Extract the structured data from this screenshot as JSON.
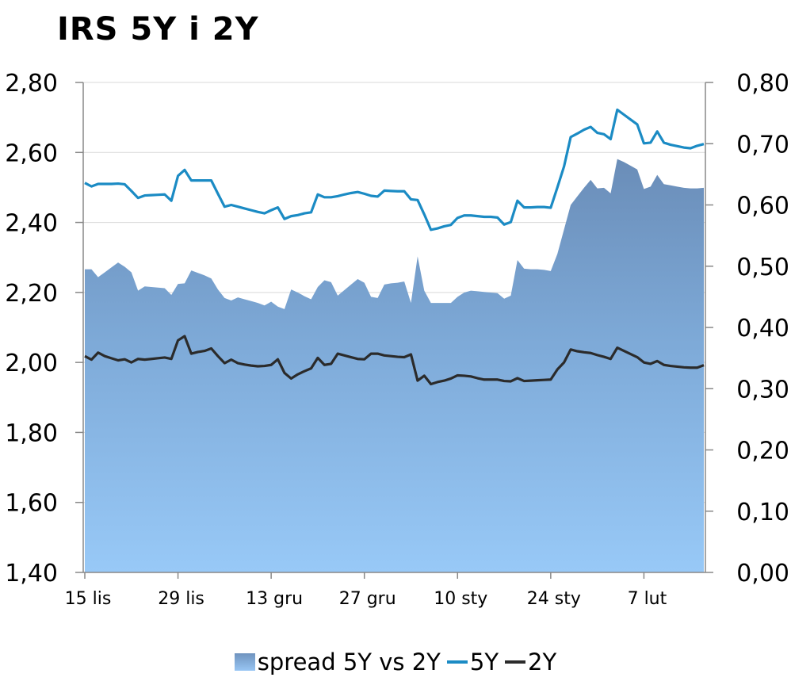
{
  "chart_data": {
    "type": "area",
    "title": "IRS 5Y i 2Y",
    "x_ticks": [
      "15 lis",
      "29 lis",
      "13 gru",
      "27 gru",
      "10 sty",
      "24 sty",
      "7 lut"
    ],
    "y_left": {
      "ylim": [
        1.4,
        2.8
      ],
      "ticks": [
        "1,40",
        "1,60",
        "1,80",
        "2,00",
        "2,20",
        "2,40",
        "2,60",
        "2,80"
      ]
    },
    "y_right": {
      "ylim": [
        0.0,
        0.8
      ],
      "ticks": [
        "0,00",
        "0,10",
        "0,20",
        "0,30",
        "0,40",
        "0,50",
        "0,60",
        "0,70",
        "0,80"
      ]
    },
    "grid": true,
    "legend_position": "bottom",
    "x": [
      0,
      1,
      2,
      3,
      4,
      5,
      6,
      7,
      8,
      9,
      10,
      11,
      12,
      13,
      14,
      15,
      16,
      17,
      18,
      19,
      20,
      21,
      22,
      23,
      24,
      25,
      26,
      27,
      28,
      29,
      30,
      31,
      32,
      33,
      34,
      35,
      36,
      37,
      38,
      39,
      40,
      41,
      42,
      43,
      44,
      45,
      46,
      47,
      48,
      49,
      50,
      51,
      52,
      53,
      54,
      55,
      56,
      57,
      58,
      59,
      60,
      61,
      62,
      63,
      64,
      65,
      66,
      67,
      68,
      69,
      70,
      71,
      72,
      73,
      74,
      75,
      76,
      77,
      78,
      79,
      80,
      81,
      82,
      83,
      84,
      85,
      86,
      87,
      88,
      89,
      90,
      91,
      92,
      93
    ],
    "x_tick_index": [
      0,
      14,
      28,
      42,
      56,
      70,
      84
    ],
    "series": [
      {
        "name": "spread 5Y vs 2Y",
        "axis": "right",
        "type": "area",
        "values": [
          0.495,
          0.495,
          0.482,
          0.49,
          0.498,
          0.506,
          0.499,
          0.49,
          0.46,
          0.467,
          0.466,
          0.465,
          0.464,
          0.453,
          0.471,
          0.472,
          0.493,
          0.489,
          0.485,
          0.48,
          0.462,
          0.448,
          0.444,
          0.449,
          0.446,
          0.443,
          0.44,
          0.436,
          0.442,
          0.434,
          0.43,
          0.462,
          0.457,
          0.451,
          0.446,
          0.466,
          0.477,
          0.474,
          0.452,
          0.461,
          0.47,
          0.479,
          0.473,
          0.45,
          0.448,
          0.47,
          0.472,
          0.473,
          0.475,
          0.44,
          0.516,
          0.46,
          0.44,
          0.44,
          0.44,
          0.44,
          0.45,
          0.457,
          0.46,
          0.459,
          0.458,
          0.457,
          0.456,
          0.447,
          0.452,
          0.51,
          0.496,
          0.495,
          0.495,
          0.494,
          0.492,
          0.52,
          0.56,
          0.6,
          0.614,
          0.628,
          0.641,
          0.627,
          0.628,
          0.619,
          0.675,
          0.67,
          0.664,
          0.658,
          0.626,
          0.63,
          0.649,
          0.634,
          0.632,
          0.63,
          0.628,
          0.627,
          0.627,
          0.628
        ]
      },
      {
        "name": "5Y",
        "axis": "left",
        "type": "line",
        "color": "#1b8bc4",
        "values": [
          2.513,
          2.503,
          2.51,
          2.51,
          2.51,
          2.511,
          2.509,
          2.49,
          2.47,
          2.477,
          2.478,
          2.479,
          2.48,
          2.462,
          2.533,
          2.55,
          2.52,
          2.52,
          2.52,
          2.52,
          2.482,
          2.445,
          2.45,
          2.445,
          2.44,
          2.435,
          2.43,
          2.426,
          2.435,
          2.443,
          2.41,
          2.418,
          2.421,
          2.426,
          2.429,
          2.48,
          2.472,
          2.472,
          2.475,
          2.48,
          2.484,
          2.487,
          2.482,
          2.476,
          2.474,
          2.491,
          2.49,
          2.489,
          2.489,
          2.466,
          2.464,
          2.423,
          2.379,
          2.383,
          2.389,
          2.393,
          2.413,
          2.42,
          2.42,
          2.418,
          2.416,
          2.416,
          2.414,
          2.394,
          2.401,
          2.462,
          2.443,
          2.443,
          2.444,
          2.444,
          2.442,
          2.5,
          2.56,
          2.644,
          2.654,
          2.665,
          2.673,
          2.656,
          2.652,
          2.638,
          2.722,
          2.708,
          2.694,
          2.68,
          2.626,
          2.628,
          2.66,
          2.628,
          2.622,
          2.618,
          2.614,
          2.612,
          2.619,
          2.624
        ]
      },
      {
        "name": "2Y",
        "axis": "left",
        "type": "line",
        "color": "#2b2b2b",
        "values": [
          2.018,
          2.008,
          2.028,
          2.018,
          2.012,
          2.006,
          2.009,
          2.0,
          2.01,
          2.008,
          2.01,
          2.012,
          2.014,
          2.01,
          2.063,
          2.075,
          2.025,
          2.03,
          2.033,
          2.04,
          2.018,
          1.998,
          2.008,
          1.998,
          1.994,
          1.991,
          1.989,
          1.99,
          1.993,
          2.009,
          1.97,
          1.954,
          1.966,
          1.975,
          1.983,
          2.013,
          1.993,
          1.996,
          2.025,
          2.02,
          2.015,
          2.01,
          2.009,
          2.025,
          2.025,
          2.02,
          2.018,
          2.016,
          2.015,
          2.023,
          1.948,
          1.962,
          1.938,
          1.944,
          1.948,
          1.954,
          1.963,
          1.962,
          1.96,
          1.955,
          1.951,
          1.951,
          1.951,
          1.947,
          1.946,
          1.955,
          1.947,
          1.948,
          1.949,
          1.95,
          1.951,
          1.98,
          2.0,
          2.037,
          2.032,
          2.029,
          2.027,
          2.021,
          2.016,
          2.01,
          2.042,
          2.033,
          2.024,
          2.015,
          2.0,
          1.996,
          2.004,
          1.993,
          1.99,
          1.988,
          1.986,
          1.985,
          1.985,
          1.992
        ]
      }
    ]
  },
  "legend": {
    "items": [
      "spread 5Y vs 2Y",
      "5Y",
      "2Y"
    ]
  }
}
